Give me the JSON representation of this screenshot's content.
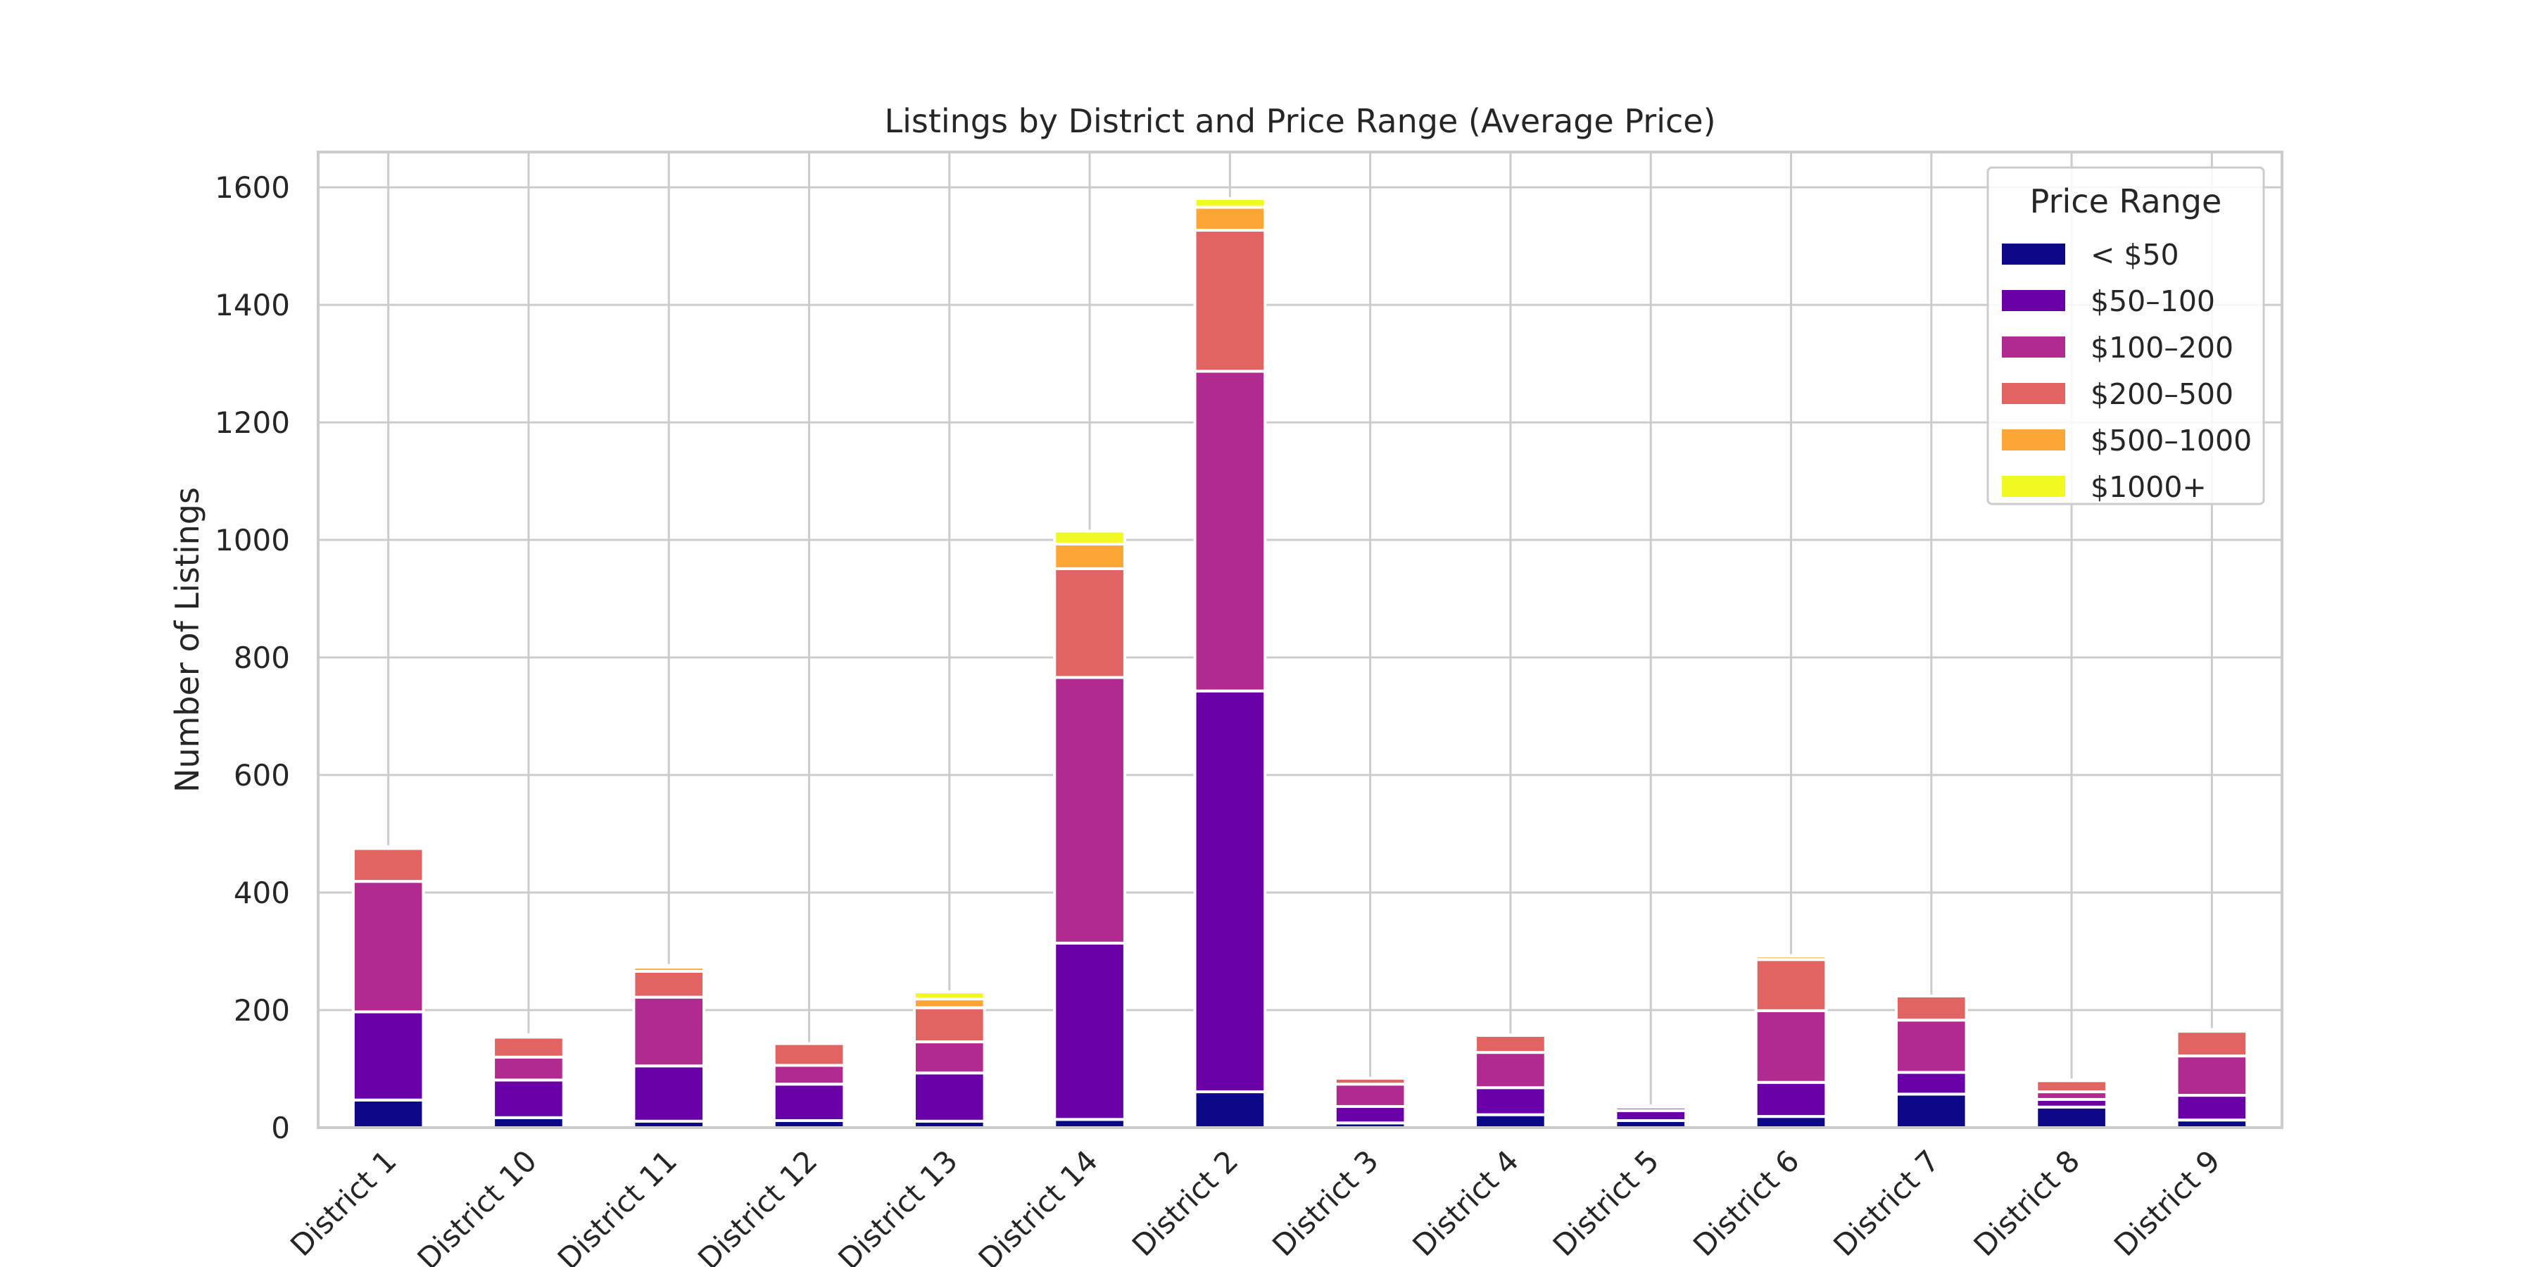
{
  "chart_data": {
    "type": "bar",
    "stacked": true,
    "title": "Listings by District and Price Range (Average Price)",
    "xlabel": "",
    "ylabel": "Number of Listings",
    "ylim": [
      0,
      1660
    ],
    "yticks": [
      0,
      200,
      400,
      600,
      800,
      1000,
      1200,
      1400,
      1600
    ],
    "grid": true,
    "categories": [
      "District 1",
      "District 10",
      "District 11",
      "District 12",
      "District 13",
      "District 14",
      "District 2",
      "District 3",
      "District 4",
      "District 5",
      "District 6",
      "District 7",
      "District 8",
      "District 9"
    ],
    "legend": {
      "title": "Price Range",
      "position": "top-right"
    },
    "series": [
      {
        "name": "< $50",
        "color": "#0d0887",
        "values": [
          47,
          17,
          11,
          12,
          11,
          14,
          61,
          8,
          22,
          12,
          19,
          57,
          35,
          13
        ]
      },
      {
        "name": "$50–100",
        "color": "#6a00a8",
        "values": [
          150,
          64,
          94,
          62,
          82,
          300,
          682,
          28,
          46,
          17,
          58,
          37,
          13,
          42
        ]
      },
      {
        "name": "$100–200",
        "color": "#b12a90",
        "values": [
          222,
          39,
          117,
          32,
          53,
          452,
          544,
          38,
          60,
          6,
          122,
          89,
          13,
          67
        ]
      },
      {
        "name": "$200–500",
        "color": "#e16462",
        "values": [
          56,
          34,
          44,
          37,
          58,
          185,
          240,
          10,
          29,
          2,
          87,
          41,
          19,
          42
        ]
      },
      {
        "name": "$500–1000",
        "color": "#fca636",
        "values": [
          3,
          4,
          7,
          0,
          15,
          42,
          39,
          0,
          1,
          0,
          6,
          0,
          1,
          3
        ]
      },
      {
        "name": "$1000+",
        "color": "#f0f921",
        "values": [
          0,
          0,
          3,
          0,
          12,
          22,
          15,
          0,
          0,
          0,
          1,
          0,
          0,
          0
        ]
      }
    ]
  }
}
